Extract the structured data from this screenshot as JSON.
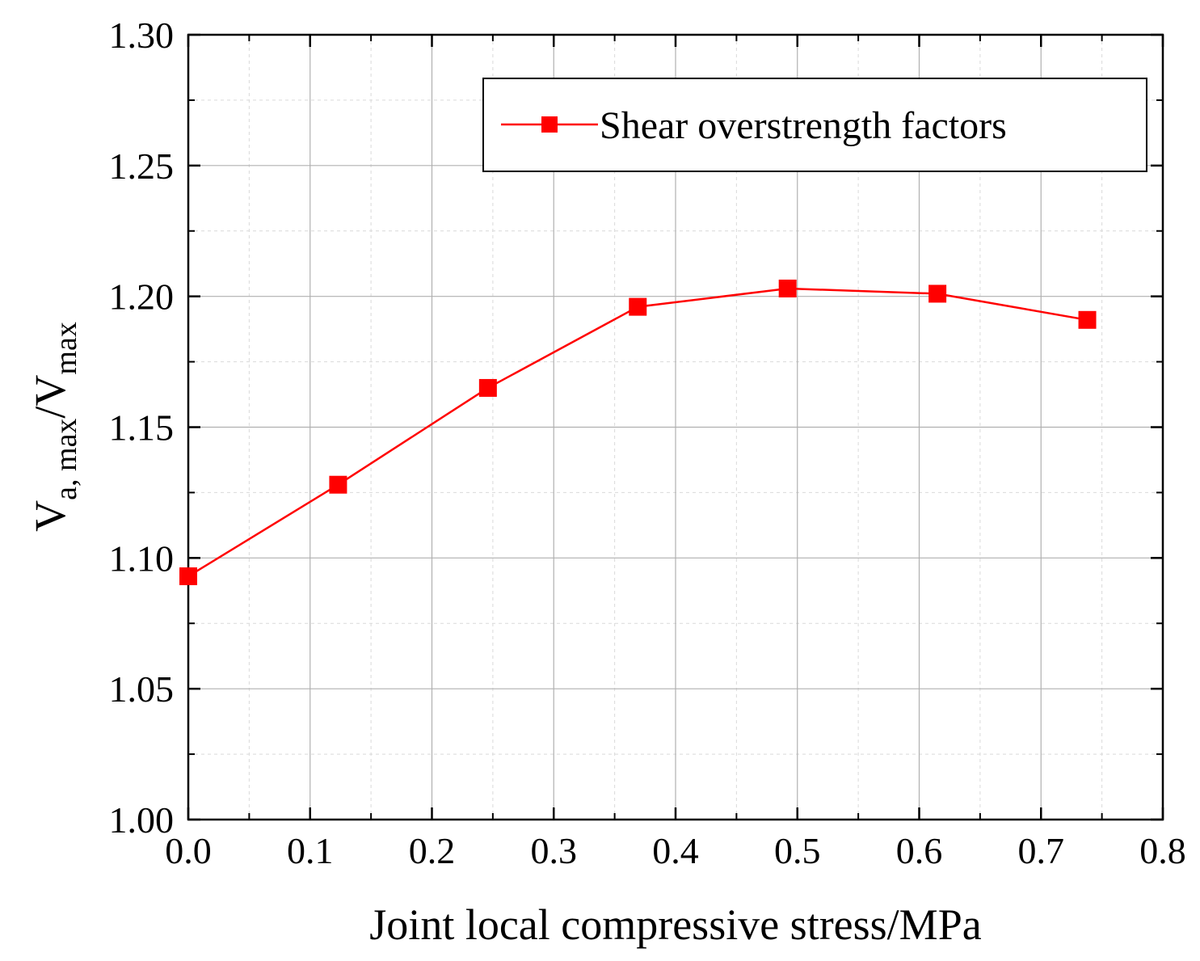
{
  "chart_data": {
    "type": "line",
    "title": "",
    "xlabel": "Joint local compressive stress/MPa",
    "ylabel": {
      "main": "V",
      "sub1": "a, max",
      "slash": "/V",
      "sub2": "max"
    },
    "xlim": [
      0.0,
      0.8
    ],
    "ylim": [
      1.0,
      1.3
    ],
    "x_ticks": [
      0.0,
      0.1,
      0.2,
      0.3,
      0.4,
      0.5,
      0.6,
      0.7,
      0.8
    ],
    "x_tick_labels": [
      "0.0",
      "0.1",
      "0.2",
      "0.3",
      "0.4",
      "0.5",
      "0.6",
      "0.7",
      "0.8"
    ],
    "y_ticks": [
      1.0,
      1.05,
      1.1,
      1.15,
      1.2,
      1.25,
      1.3
    ],
    "y_tick_labels": [
      "1.00",
      "1.05",
      "1.10",
      "1.15",
      "1.20",
      "1.25",
      "1.30"
    ],
    "grid": true,
    "legend_position": "top-right",
    "series": [
      {
        "name": "Shear overstrength factors",
        "color": "#ff0000",
        "marker": "square",
        "x": [
          0.0,
          0.123,
          0.246,
          0.369,
          0.492,
          0.615,
          0.738
        ],
        "y": [
          1.093,
          1.128,
          1.165,
          1.196,
          1.203,
          1.201,
          1.191
        ]
      }
    ]
  }
}
